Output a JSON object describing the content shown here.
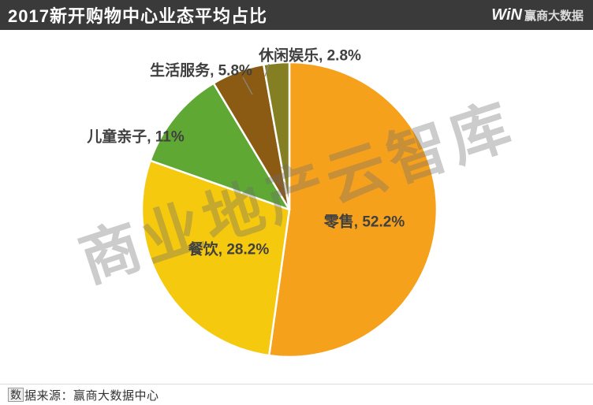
{
  "header": {
    "title": "2017新开购物中心业态平均占比",
    "logo_win": "WiN",
    "logo_text": "赢商大数据"
  },
  "watermark": "商业地产云智库",
  "footer": {
    "boxed_char": "数",
    "source_text": "据来源：赢商大数据中心"
  },
  "chart_data": {
    "type": "pie",
    "title": "2017新开购物中心业态平均占比",
    "unit": "%",
    "start_angle_deg": 0,
    "direction": "clockwise",
    "categories": [
      "零售",
      "餐饮",
      "儿童亲子",
      "生活服务",
      "休闲娱乐"
    ],
    "values": [
      52.2,
      28.2,
      11,
      5.8,
      2.8
    ],
    "slices": [
      {
        "name": "零售",
        "value": 52.2,
        "color": "#F6A11C",
        "label": "零售, 52.2%"
      },
      {
        "name": "餐饮",
        "value": 28.2,
        "color": "#F5C90E",
        "label": "餐饮, 28.2%"
      },
      {
        "name": "儿童亲子",
        "value": 11,
        "color": "#5FA833",
        "label": "儿童亲子, 11%"
      },
      {
        "name": "生活服务",
        "value": 5.8,
        "color": "#8B5A13",
        "label": "生活服务, 5.8%"
      },
      {
        "name": "休闲娱乐",
        "value": 2.8,
        "color": "#857F24",
        "label": "休闲娱乐, 2.8%"
      }
    ],
    "colors": {
      "header_bg": "#3A3A3A",
      "label_text": "#404040",
      "leader_line": "#8A8A8A"
    }
  }
}
